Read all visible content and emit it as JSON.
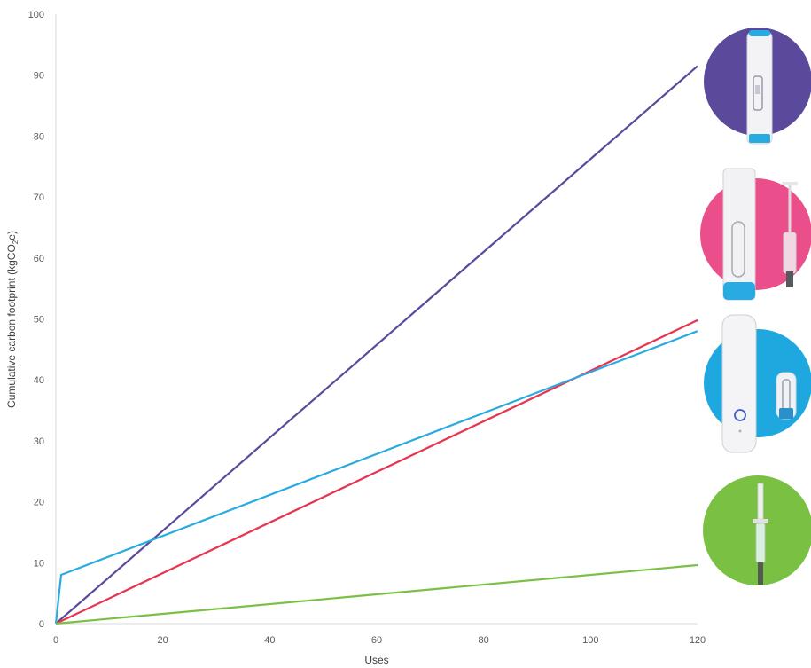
{
  "chart_data": {
    "type": "line",
    "xlabel": "Uses",
    "ylabel_main": "Cumulative carbon footprint (kgCO",
    "ylabel_sub": "2",
    "ylabel_end": "e)",
    "xlim": [
      0,
      120
    ],
    "ylim": [
      0,
      100
    ],
    "x_ticks": [
      "0",
      "20",
      "40",
      "60",
      "80",
      "100",
      "120"
    ],
    "y_ticks": [
      "0",
      "10",
      "20",
      "30",
      "40",
      "50",
      "60",
      "70",
      "80",
      "90",
      "100"
    ],
    "grid": false,
    "series": [
      {
        "color": "#5b4a9b",
        "x": [
          0,
          120
        ],
        "y": [
          0,
          91.5
        ]
      },
      {
        "color": "#e8344e",
        "x": [
          0,
          120
        ],
        "y": [
          0,
          49.8
        ]
      },
      {
        "color": "#29abe2",
        "x": [
          0,
          1,
          120
        ],
        "y": [
          0,
          8,
          48
        ]
      },
      {
        "color": "#7ac143",
        "x": [
          0,
          120
        ],
        "y": [
          0,
          9.6
        ]
      }
    ],
    "device_badges": [
      {
        "icon": "single-pen-injector-icon",
        "color": "#5b4a9b"
      },
      {
        "icon": "pen-and-syringe-icon",
        "color": "#ea4f8b"
      },
      {
        "icon": "autoinjector-and-cartridge-icon",
        "color": "#1fa8e0"
      },
      {
        "icon": "prefilled-syringe-icon",
        "color": "#7ac143"
      }
    ]
  }
}
